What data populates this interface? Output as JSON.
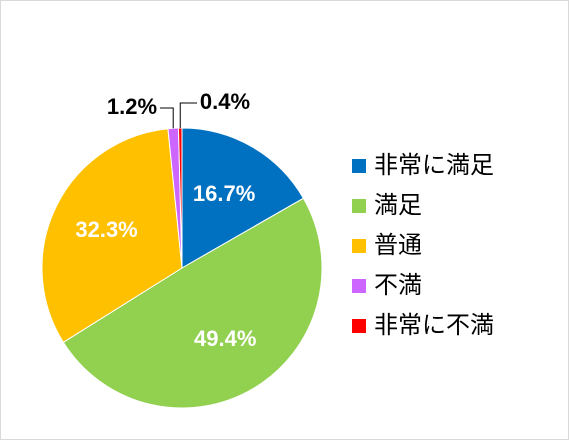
{
  "chart_data": {
    "type": "pie",
    "categories": [
      "非常に満足",
      "満足",
      "普通",
      "不満",
      "非常に不満"
    ],
    "values": [
      16.7,
      49.4,
      32.3,
      1.2,
      0.4
    ],
    "value_labels": [
      "16.7%",
      "49.4%",
      "32.3%",
      "1.2%",
      "0.4%"
    ],
    "colors": [
      "#0070c0",
      "#92d050",
      "#ffc000",
      "#cc66ff",
      "#ff0000"
    ],
    "legend": "right"
  }
}
